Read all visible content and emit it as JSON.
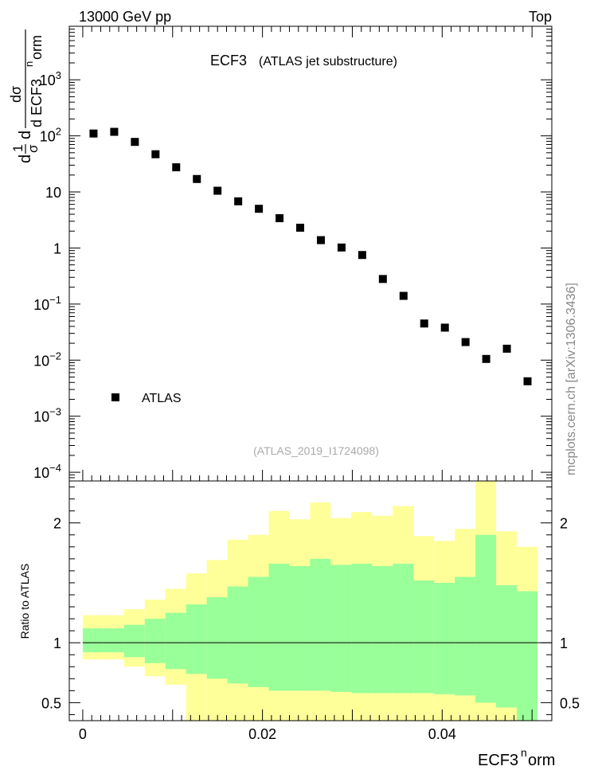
{
  "header": {
    "left": "13000 GeV pp",
    "right": "Top"
  },
  "side_label": "mcplots.cern.ch [arXiv:1306.3436]",
  "chart_data": [
    {
      "type": "scatter",
      "title": "ECF3",
      "subtitle": "(ATLAS jet substructure)",
      "analysis_tag": "(ATLAS_2019_I1724098)",
      "ylabel_parts": [
        "d",
        "1",
        "σ",
        "dσ",
        "d ECF3",
        "n",
        "orm"
      ],
      "yscale": "log",
      "ylim": [
        7e-05,
        9000
      ],
      "xlim": [
        -0.0015,
        0.0522
      ],
      "y_ticks": [
        {
          "v": 0.0001,
          "base": "10",
          "exp": "−4"
        },
        {
          "v": 0.001,
          "base": "10",
          "exp": "−3"
        },
        {
          "v": 0.01,
          "base": "10",
          "exp": "−2"
        },
        {
          "v": 0.1,
          "base": "10",
          "exp": "−1"
        },
        {
          "v": 1,
          "base": "1",
          "exp": ""
        },
        {
          "v": 10,
          "base": "10",
          "exp": ""
        },
        {
          "v": 100,
          "base": "10",
          "exp": "2"
        },
        {
          "v": 1000,
          "base": "10",
          "exp": "3"
        }
      ],
      "legend": [
        {
          "name": "ATLAS",
          "marker": "square",
          "color": "#000000"
        }
      ],
      "series": [
        {
          "name": "ATLAS",
          "x": [
            0.0012,
            0.0035,
            0.0058,
            0.0081,
            0.0104,
            0.0127,
            0.015,
            0.0173,
            0.0196,
            0.0219,
            0.0242,
            0.0265,
            0.0288,
            0.0311,
            0.0334,
            0.0357,
            0.038,
            0.0403,
            0.0426,
            0.0449,
            0.0472,
            0.0495
          ],
          "y": [
            110,
            118,
            78,
            47,
            27.5,
            17,
            10.5,
            6.8,
            5.0,
            3.4,
            2.3,
            1.38,
            1.02,
            0.75,
            0.28,
            0.14,
            0.045,
            0.038,
            0.021,
            0.0105,
            0.016,
            0.0042
          ]
        }
      ]
    },
    {
      "type": "area",
      "ylabel": "Ratio to ATLAS",
      "xlabel_parts": [
        "ECF3",
        "n",
        "orm"
      ],
      "xlim": [
        -0.0015,
        0.0522
      ],
      "ylim": [
        0.35,
        2.35
      ],
      "x_ticks": [
        {
          "v": 0,
          "label": "0"
        },
        {
          "v": 0.02,
          "label": "0.02"
        },
        {
          "v": 0.04,
          "label": "0.04"
        }
      ],
      "y_ticks": [
        {
          "v": 0.5,
          "label": "0.5"
        },
        {
          "v": 1,
          "label": "1"
        },
        {
          "v": 2,
          "label": "2"
        }
      ],
      "reference_line": 1,
      "bin_edges": [
        0,
        0.0023,
        0.0046,
        0.0069,
        0.0092,
        0.0115,
        0.0138,
        0.0161,
        0.0184,
        0.0207,
        0.023,
        0.0253,
        0.0276,
        0.0299,
        0.0322,
        0.0345,
        0.0368,
        0.0391,
        0.0414,
        0.0437,
        0.046,
        0.0483,
        0.0506
      ],
      "colors": {
        "inner_band": "#99ff99",
        "outer_band": "#ffff99",
        "line": "#000000"
      },
      "inner_band": {
        "lo": [
          0.92,
          0.92,
          0.88,
          0.83,
          0.78,
          0.74,
          0.7,
          0.66,
          0.63,
          0.6,
          0.6,
          0.6,
          0.59,
          0.58,
          0.58,
          0.58,
          0.58,
          0.57,
          0.56,
          0.5,
          0.46,
          0.35
        ],
        "hi": [
          1.12,
          1.12,
          1.15,
          1.2,
          1.25,
          1.32,
          1.38,
          1.47,
          1.55,
          1.66,
          1.64,
          1.7,
          1.65,
          1.66,
          1.64,
          1.66,
          1.52,
          1.5,
          1.55,
          1.9,
          1.48,
          1.43
        ]
      },
      "outer_band": {
        "lo": [
          0.86,
          0.86,
          0.8,
          0.72,
          0.65,
          0.35,
          0.35,
          0.35,
          0.35,
          0.35,
          0.35,
          0.35,
          0.35,
          0.35,
          0.35,
          0.35,
          0.35,
          0.35,
          0.35,
          0.35,
          0.35,
          0.35
        ],
        "hi": [
          1.23,
          1.23,
          1.28,
          1.36,
          1.45,
          1.58,
          1.69,
          1.86,
          1.9,
          2.1,
          2.03,
          2.17,
          2.04,
          2.09,
          2.06,
          2.14,
          1.89,
          1.85,
          1.95,
          2.35,
          1.93,
          1.8
        ]
      }
    }
  ]
}
